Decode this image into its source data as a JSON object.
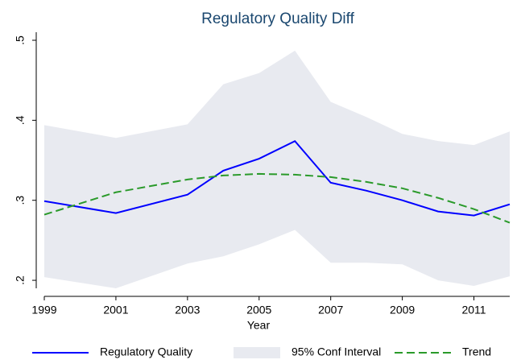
{
  "chart_data": {
    "type": "line",
    "title": "Regulatory Quality Diff",
    "x_label": "Year",
    "x": [
      1999,
      2001,
      2003,
      2004,
      2005,
      2006,
      2007,
      2008,
      2009,
      2010,
      2011,
      2012
    ],
    "series": [
      {
        "name": "Regulatory Quality",
        "color": "#0000ff",
        "style": "solid",
        "values": [
          0.299,
          0.284,
          0.307,
          0.337,
          0.352,
          0.374,
          0.322,
          0.312,
          0.3,
          0.286,
          0.281,
          0.295
        ]
      },
      {
        "name": "95% Conf Interval",
        "color": "#e8eaf0",
        "style": "band",
        "lower": [
          0.204,
          0.19,
          0.221,
          0.23,
          0.245,
          0.263,
          0.222,
          0.222,
          0.22,
          0.2,
          0.193,
          0.205
        ],
        "upper": [
          0.394,
          0.378,
          0.395,
          0.445,
          0.459,
          0.487,
          0.423,
          0.404,
          0.383,
          0.374,
          0.369,
          0.386
        ]
      },
      {
        "name": "Trend",
        "color": "#2a9a2a",
        "style": "dashed",
        "values": [
          0.282,
          0.31,
          0.326,
          0.331,
          0.333,
          0.332,
          0.329,
          0.323,
          0.315,
          0.303,
          0.289,
          0.272
        ]
      }
    ],
    "xlim": [
      1999,
      2012
    ],
    "xticks": [
      1999,
      2001,
      2003,
      2005,
      2007,
      2009,
      2011
    ],
    "ylim": [
      0.19,
      0.5
    ],
    "yticks": [
      {
        "value": 0.2,
        "label": ".2"
      },
      {
        "value": 0.3,
        "label": ".3"
      },
      {
        "value": 0.4,
        "label": ".4"
      },
      {
        "value": 0.5,
        "label": ".5"
      }
    ],
    "legend": "bottom"
  }
}
